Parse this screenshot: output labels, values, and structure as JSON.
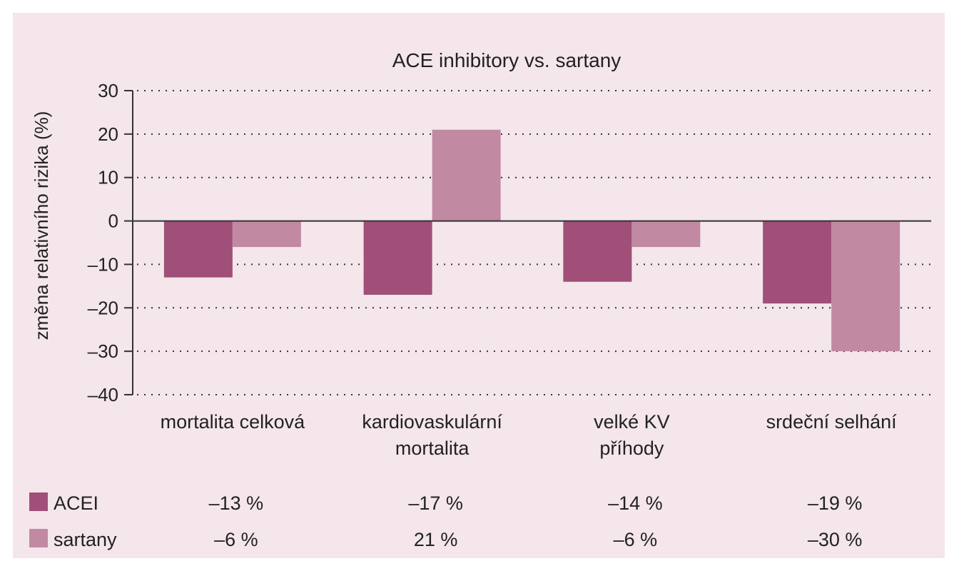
{
  "chart_data": {
    "type": "bar",
    "title": "ACE inhibitory vs. sartany",
    "ylabel": "změna relativního rizika (%)",
    "xlabel": "",
    "ylim": [
      -40,
      30
    ],
    "yticks": [
      30,
      20,
      10,
      0,
      -10,
      -20,
      -30,
      -40
    ],
    "ytick_labels": [
      "30",
      "20",
      "10",
      "0",
      "–10",
      "–20",
      "–30",
      "–40"
    ],
    "grid": true,
    "categories": [
      [
        "mortalita celková"
      ],
      [
        "kardiovaskulární",
        "mortalita"
      ],
      [
        "velké KV",
        "příhody"
      ],
      [
        "srdeční selhání"
      ]
    ],
    "series": [
      {
        "name": "ACEI",
        "color": "#a04f78",
        "values": [
          -13,
          -17,
          -14,
          -19
        ],
        "value_labels": [
          "–13 %",
          "–17 %",
          "–14 %",
          "–19 %"
        ]
      },
      {
        "name": "sartany",
        "color": "#c18aa2",
        "values": [
          -6,
          21,
          -6,
          -30
        ],
        "value_labels": [
          "–6 %",
          "21 %",
          "–6 %",
          "–30 %"
        ]
      }
    ],
    "legend_placement": "bottom-left table"
  }
}
